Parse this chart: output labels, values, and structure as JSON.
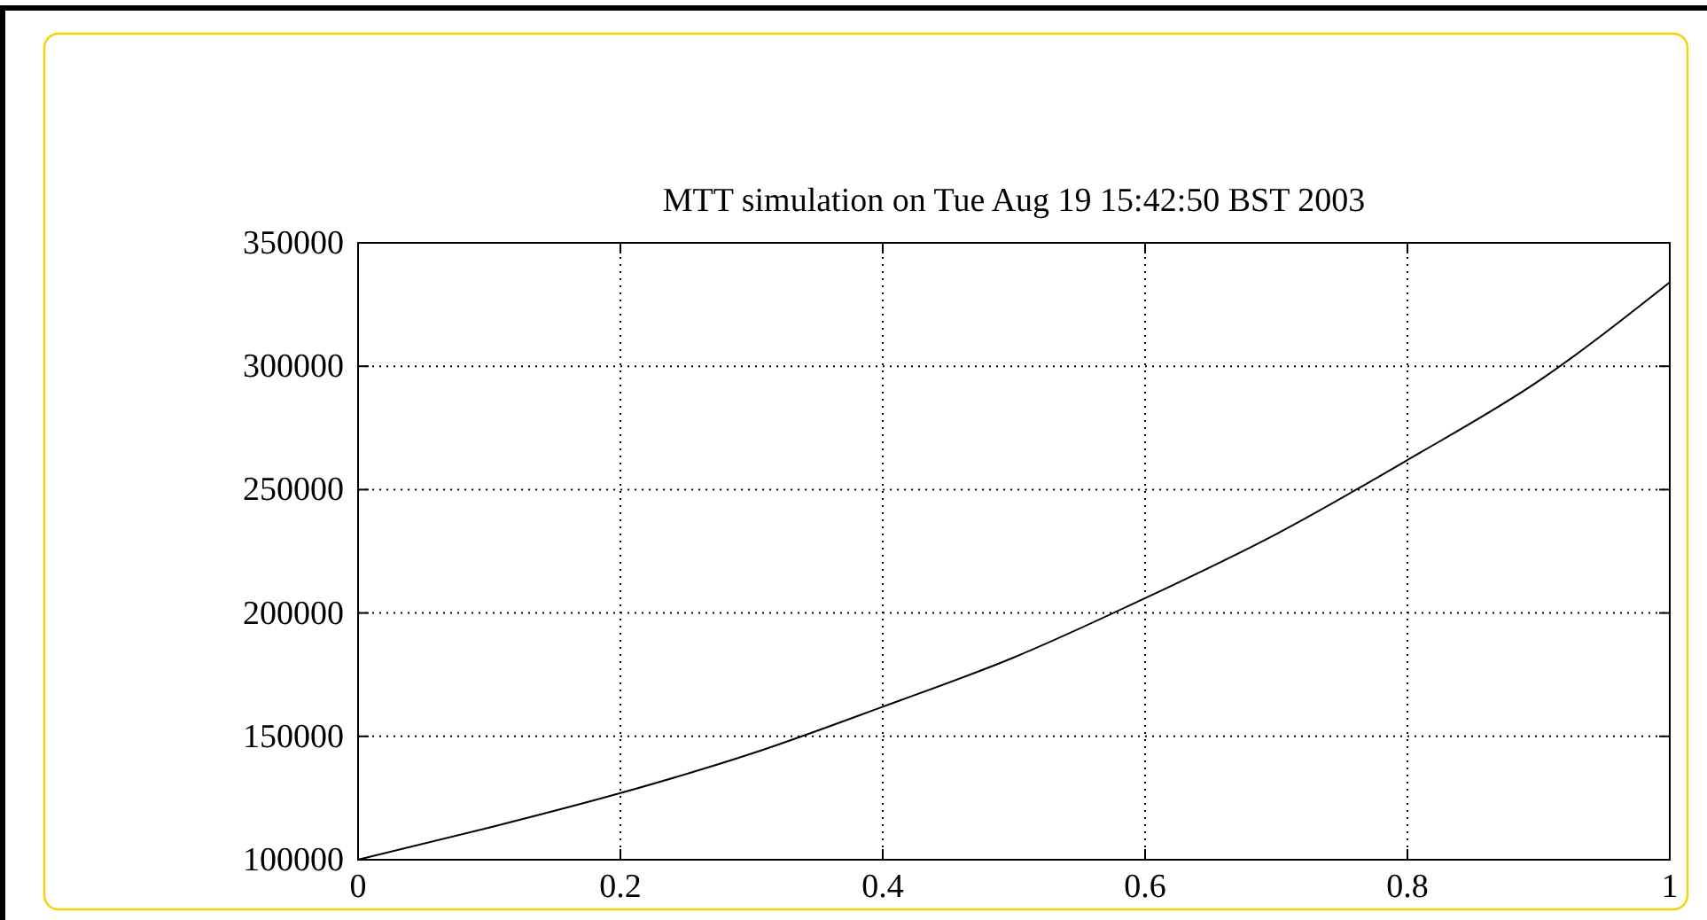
{
  "chart_data": {
    "type": "line",
    "title": "MTT simulation on Tue Aug 19 15:42:50 BST 2003",
    "x": [
      0,
      0.1,
      0.2,
      0.3,
      0.4,
      0.5,
      0.6,
      0.7,
      0.8,
      0.9,
      1
    ],
    "series": [
      {
        "color": "#000000",
        "values": [
          100000,
          113000,
          127000,
          143000,
          162000,
          182000,
          206000,
          232000,
          262000,
          294000,
          334000
        ]
      }
    ],
    "xlim": [
      0,
      1
    ],
    "xticks": [
      0,
      0.2,
      0.4,
      0.6,
      0.8,
      1
    ],
    "ylim": [
      100000,
      350000
    ],
    "yticks": [
      100000,
      150000,
      200000,
      250000,
      300000,
      350000
    ],
    "grid": true,
    "line_style": "solid"
  }
}
